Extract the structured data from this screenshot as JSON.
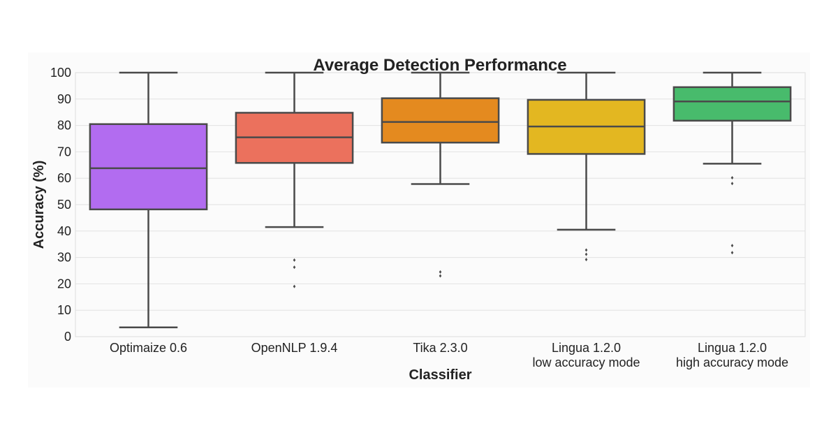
{
  "chart_data": {
    "type": "box",
    "title": "Average Detection Performance",
    "xlabel": "Classifier",
    "ylabel": "Accuracy (%)",
    "ylim": [
      0,
      100
    ],
    "yticks": [
      "0",
      "10",
      "20",
      "30",
      "40",
      "50",
      "60",
      "70",
      "80",
      "90",
      "100"
    ],
    "grid": "horizontal",
    "categories": [
      [
        "Optimaize 0.6"
      ],
      [
        "OpenNLP 1.9.4"
      ],
      [
        "Tika 2.3.0"
      ],
      [
        "Lingua 1.2.0",
        "low accuracy mode"
      ],
      [
        "Lingua 1.2.0",
        "high accuracy mode"
      ]
    ],
    "boxes": [
      {
        "whisker_low": 3.5,
        "q1": 48.2,
        "median": 63.8,
        "q3": 80.5,
        "whisker_high": 100,
        "outliers": [],
        "color": "#b26cf0"
      },
      {
        "whisker_low": 41.5,
        "q1": 65.8,
        "median": 75.5,
        "q3": 84.8,
        "whisker_high": 100,
        "outliers": [
          19,
          26.3,
          29
        ],
        "color": "#eb715d"
      },
      {
        "whisker_low": 57.8,
        "q1": 73.5,
        "median": 81.3,
        "q3": 90.3,
        "whisker_high": 100,
        "outliers": [
          23,
          24.5
        ],
        "color": "#e48a1f"
      },
      {
        "whisker_low": 40.5,
        "q1": 69.2,
        "median": 79.6,
        "q3": 89.7,
        "whisker_high": 100,
        "outliers": [
          29.2,
          31.2,
          32.8
        ],
        "color": "#e3b721"
      },
      {
        "whisker_low": 65.5,
        "q1": 81.8,
        "median": 89.1,
        "q3": 94.5,
        "whisker_high": 100,
        "outliers": [
          31.8,
          34.5,
          58,
          60.2
        ],
        "color": "#48bb6c"
      }
    ]
  }
}
